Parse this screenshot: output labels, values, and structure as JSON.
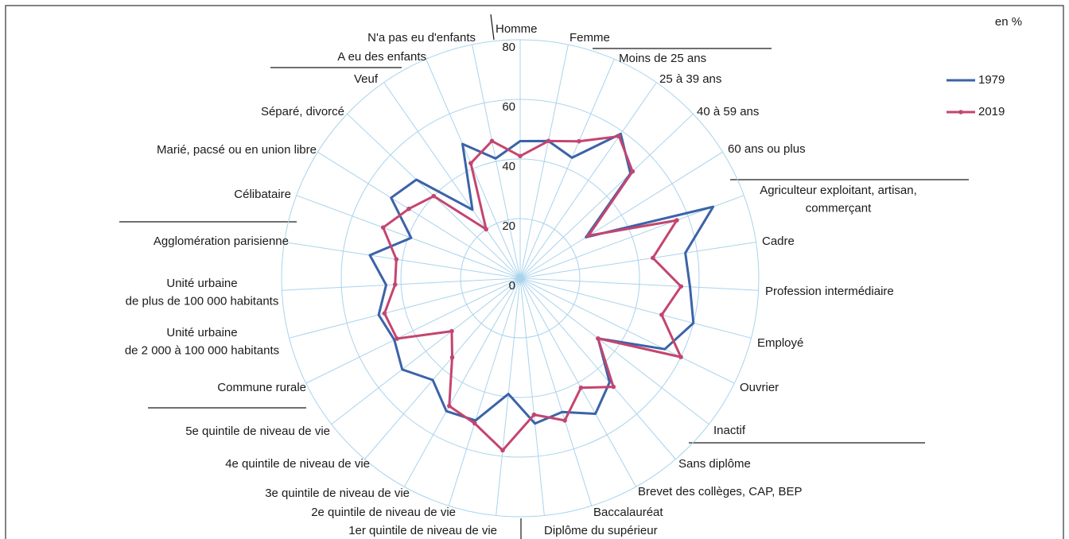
{
  "chart_data": {
    "type": "radar",
    "unit_label": "en %",
    "categories": [
      "Homme",
      "Femme",
      "Moins de 25 ans",
      "25 à 39 ans",
      "40 à 59 ans",
      "60 ans ou plus",
      "Agriculteur exploitant, artisan,\ncommerçant",
      "Cadre",
      "Profession intermédiaire",
      "Employé",
      "Ouvrier",
      "Inactif",
      "Sans diplôme",
      "Brevet des collèges, CAP, BEP",
      "Baccalauréat",
      "Diplôme du supérieur",
      "1er quintile de niveau de vie",
      "2e quintile de niveau de vie",
      "3e quintile de niveau de vie",
      "4e quintile de niveau de vie",
      "5e quintile de niveau de vie",
      "Commune rurale",
      "Unité urbaine\nde 2 000 à 100 000 habitants",
      "Unité urbaine\nde plus de 100 000 habitants",
      "Agglomération parisienne",
      "Célibataire",
      "Marié, pacsé ou en union libre",
      "Séparé, divorcé",
      "Veuf",
      "A eu des enfants",
      "N'a pas eu d'enfants"
    ],
    "series": [
      {
        "name": "1979",
        "color": "#3b63a8",
        "markers": false,
        "values": [
          46,
          47,
          44,
          59,
          51,
          26,
          69,
          56,
          57,
          60,
          54,
          33,
          46,
          52,
          47,
          49,
          39,
          50,
          51,
          45,
          50,
          47,
          49,
          45,
          51,
          39,
          51,
          48,
          28,
          49,
          41
        ]
      },
      {
        "name": "2019",
        "color": "#c4456f",
        "markers": true,
        "values": [
          41,
          47,
          50,
          58,
          52,
          27,
          56,
          45,
          54,
          49,
          60,
          33,
          48,
          42,
          50,
          46,
          58,
          51,
          49,
          35,
          29,
          46,
          47,
          42,
          42,
          49,
          44,
          40,
          20,
          42,
          47
        ]
      }
    ],
    "rlim": [
      0,
      80
    ],
    "rticks": [
      0,
      20,
      40,
      60,
      80
    ],
    "grid": true
  }
}
